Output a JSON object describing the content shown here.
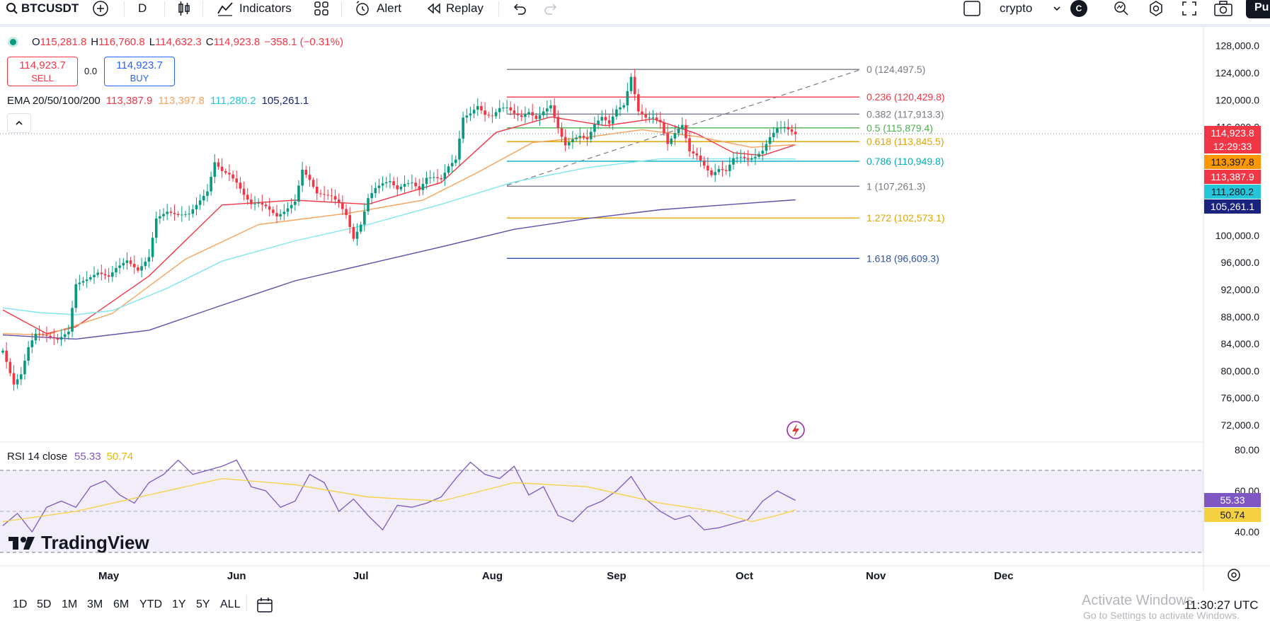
{
  "toolbar": {
    "symbol": "BTCUSDT",
    "interval": "D",
    "indicators_label": "Indicators",
    "alert_label": "Alert",
    "replay_label": "Replay",
    "layout_name": "crypto",
    "account_badge": "C",
    "publish_label": "Pu"
  },
  "legend": {
    "o_label": "O",
    "o_value": "115,281.8",
    "h_label": "H",
    "h_value": "116,760.8",
    "l_label": "L",
    "l_value": "114,632.3",
    "c_label": "C",
    "c_value": "114,923.8",
    "change": "−358.1 (−0.31%)",
    "sell_price": "114,923.7",
    "sell_label": "SELL",
    "spread": "0.0",
    "buy_price": "114,923.7",
    "buy_label": "BUY",
    "ema_label": "EMA 20/50/100/200",
    "ema20": "113,387.9",
    "ema50": "113,397.8",
    "ema100": "111,280.2",
    "ema200": "105,261.1"
  },
  "rsi_legend": {
    "label": "RSI 14 close",
    "rsi": "55.33",
    "ma": "50.74"
  },
  "bottom": {
    "ranges": [
      "1D",
      "5D",
      "1M",
      "3M",
      "6M",
      "YTD",
      "1Y",
      "5Y",
      "ALL"
    ],
    "clock": "11:30:27 UTC",
    "watermark_title": "Activate Windows",
    "watermark_sub": "Go to Settings to activate Windows."
  },
  "brand": "TradingView",
  "colors": {
    "up": "#089981",
    "down": "#f23645",
    "ema20": "#f23645",
    "ema50": "#f7a35c",
    "ema100": "#7ee6ee",
    "ema200": "#5d4ea8",
    "rsi": "#7e57c2",
    "rsi_ma": "#f5d142"
  },
  "chart_data": {
    "type": "candlestick",
    "symbol": "BTCUSDT",
    "interval": "1D",
    "y_price_range": [
      70000,
      130000
    ],
    "price_ticks": [
      "128,000.0",
      "124,000.0",
      "120,000.0",
      "116,000.0",
      "100,000.0",
      "96,000.0",
      "92,000.0",
      "88,000.0",
      "84,000.0",
      "80,000.0",
      "76,000.0",
      "72,000.0"
    ],
    "x_month_labels": [
      "May",
      "Jun",
      "Jul",
      "Aug",
      "Sep",
      "Oct",
      "Nov",
      "Dec"
    ],
    "last_price": {
      "value": "114,923.8",
      "countdown": "12:29:33"
    },
    "ema_tags": [
      "113,397.8",
      "113,387.9",
      "111,280.2",
      "105,261.1"
    ],
    "close_path": [
      [
        0,
        83000
      ],
      [
        3,
        78000
      ],
      [
        5,
        79500
      ],
      [
        7,
        83500
      ],
      [
        9,
        85500
      ],
      [
        12,
        85200
      ],
      [
        15,
        84600
      ],
      [
        18,
        85800
      ],
      [
        20,
        92800
      ],
      [
        23,
        93500
      ],
      [
        26,
        94500
      ],
      [
        29,
        93900
      ],
      [
        31,
        95200
      ],
      [
        34,
        96300
      ],
      [
        37,
        94800
      ],
      [
        40,
        96800
      ],
      [
        42,
        102500
      ],
      [
        45,
        103500
      ],
      [
        48,
        103000
      ],
      [
        51,
        103200
      ],
      [
        53,
        104500
      ],
      [
        56,
        106500
      ],
      [
        58,
        110800
      ],
      [
        60,
        109500
      ],
      [
        62,
        109000
      ],
      [
        64,
        107800
      ],
      [
        66,
        106000
      ],
      [
        68,
        104600
      ],
      [
        70,
        104800
      ],
      [
        72,
        104300
      ],
      [
        75,
        102800
      ],
      [
        77,
        103500
      ],
      [
        80,
        105000
      ],
      [
        82,
        109700
      ],
      [
        84,
        108200
      ],
      [
        86,
        106200
      ],
      [
        88,
        106000
      ],
      [
        90,
        105800
      ],
      [
        92,
        104800
      ],
      [
        94,
        103000
      ],
      [
        96,
        99500
      ],
      [
        98,
        101600
      ],
      [
        100,
        105500
      ],
      [
        102,
        107000
      ],
      [
        104,
        107700
      ],
      [
        106,
        108000
      ],
      [
        108,
        106800
      ],
      [
        110,
        107600
      ],
      [
        112,
        107800
      ],
      [
        114,
        106700
      ],
      [
        116,
        108500
      ],
      [
        118,
        108600
      ],
      [
        120,
        108300
      ],
      [
        122,
        110200
      ],
      [
        124,
        111200
      ],
      [
        126,
        117400
      ],
      [
        128,
        118000
      ],
      [
        130,
        119100
      ],
      [
        132,
        117800
      ],
      [
        134,
        117600
      ],
      [
        136,
        118800
      ],
      [
        138,
        118900
      ],
      [
        140,
        118000
      ],
      [
        142,
        117500
      ],
      [
        144,
        118200
      ],
      [
        146,
        117200
      ],
      [
        148,
        118300
      ],
      [
        150,
        119200
      ],
      [
        152,
        115800
      ],
      [
        154,
        113300
      ],
      [
        156,
        114200
      ],
      [
        158,
        114700
      ],
      [
        160,
        114200
      ],
      [
        162,
        116400
      ],
      [
        164,
        117500
      ],
      [
        166,
        116500
      ],
      [
        168,
        118600
      ],
      [
        170,
        119200
      ],
      [
        172,
        123400
      ],
      [
        174,
        118300
      ],
      [
        176,
        117400
      ],
      [
        178,
        117400
      ],
      [
        180,
        116700
      ],
      [
        182,
        113500
      ],
      [
        184,
        115100
      ],
      [
        186,
        116300
      ],
      [
        188,
        112400
      ],
      [
        190,
        111800
      ],
      [
        192,
        110300
      ],
      [
        194,
        108900
      ],
      [
        196,
        109800
      ],
      [
        198,
        109500
      ],
      [
        200,
        111400
      ],
      [
        202,
        111600
      ],
      [
        204,
        111200
      ],
      [
        206,
        111600
      ],
      [
        208,
        112500
      ],
      [
        210,
        114500
      ],
      [
        212,
        115800
      ],
      [
        214,
        116000
      ],
      [
        216,
        115300
      ],
      [
        217,
        114924
      ]
    ],
    "emas": [
      {
        "name": "EMA 20",
        "last": 113387.9,
        "points": [
          [
            0,
            89000
          ],
          [
            12,
            85500
          ],
          [
            20,
            86500
          ],
          [
            40,
            94000
          ],
          [
            60,
            104500
          ],
          [
            80,
            105200
          ],
          [
            100,
            104600
          ],
          [
            120,
            107800
          ],
          [
            135,
            115200
          ],
          [
            150,
            117500
          ],
          [
            165,
            116200
          ],
          [
            178,
            117200
          ],
          [
            190,
            115000
          ],
          [
            200,
            112200
          ],
          [
            208,
            111800
          ],
          [
            217,
            113388
          ]
        ]
      },
      {
        "name": "EMA 50",
        "last": 113397.8,
        "points": [
          [
            0,
            85500
          ],
          [
            12,
            85300
          ],
          [
            30,
            88500
          ],
          [
            50,
            96500
          ],
          [
            70,
            101600
          ],
          [
            95,
            103300
          ],
          [
            115,
            105200
          ],
          [
            130,
            109300
          ],
          [
            145,
            113700
          ],
          [
            160,
            114500
          ],
          [
            175,
            115600
          ],
          [
            190,
            114600
          ],
          [
            205,
            113000
          ],
          [
            217,
            113398
          ]
        ]
      },
      {
        "name": "EMA 100",
        "last": 111280.2,
        "points": [
          [
            0,
            89300
          ],
          [
            10,
            88600
          ],
          [
            20,
            88300
          ],
          [
            30,
            88900
          ],
          [
            45,
            92200
          ],
          [
            60,
            96200
          ],
          [
            80,
            99200
          ],
          [
            100,
            101600
          ],
          [
            120,
            104600
          ],
          [
            140,
            107900
          ],
          [
            160,
            110000
          ],
          [
            180,
            111300
          ],
          [
            200,
            111300
          ],
          [
            217,
            111280
          ]
        ]
      },
      {
        "name": "EMA 200",
        "last": 105261.1,
        "points": [
          [
            0,
            85300
          ],
          [
            20,
            84700
          ],
          [
            40,
            86000
          ],
          [
            60,
            89700
          ],
          [
            80,
            93300
          ],
          [
            100,
            95800
          ],
          [
            120,
            98300
          ],
          [
            140,
            100900
          ],
          [
            160,
            102500
          ],
          [
            180,
            103800
          ],
          [
            200,
            104600
          ],
          [
            217,
            105261
          ]
        ]
      }
    ],
    "fibonacci": [
      {
        "ratio": "0",
        "label": "0 (124,497.5)",
        "price": 124497.5,
        "color": "#787b86"
      },
      {
        "ratio": "0.236",
        "label": "0.236 (120,429.8)",
        "price": 120429.8,
        "color": "#f23645"
      },
      {
        "ratio": "0.382",
        "label": "0.382 (117,913.3)",
        "price": 117913.3,
        "color": "#787b86"
      },
      {
        "ratio": "0.5",
        "label": "0.5 (115,879.4)",
        "price": 115879.4,
        "color": "#4caf50"
      },
      {
        "ratio": "0.618",
        "label": "0.618 (113,845.5)",
        "price": 113845.5,
        "color": "#e2a400"
      },
      {
        "ratio": "0.786",
        "label": "0.786 (110,949.8)",
        "price": 110949.8,
        "color": "#00acc1"
      },
      {
        "ratio": "1",
        "label": "1 (107,261.3)",
        "price": 107261.3,
        "color": "#787b86"
      },
      {
        "ratio": "1.272",
        "label": "1.272 (102,573.1)",
        "price": 102573.1,
        "color": "#e2a400"
      },
      {
        "ratio": "1.618",
        "label": "1.618 (96,609.3)",
        "price": 96609.3,
        "color": "#2b53a8"
      }
    ],
    "rsi": {
      "period": 14,
      "range": [
        30,
        80
      ],
      "ticks": [
        "80.00",
        "60.00",
        "40.00"
      ],
      "upper_band": 70,
      "mid": 50,
      "lower_band": 30,
      "last": 55.33,
      "ma_last": 50.74,
      "values": [
        [
          0,
          43
        ],
        [
          4,
          49
        ],
        [
          8,
          40
        ],
        [
          12,
          52
        ],
        [
          16,
          55
        ],
        [
          20,
          52
        ],
        [
          24,
          62
        ],
        [
          28,
          65
        ],
        [
          32,
          58
        ],
        [
          36,
          54
        ],
        [
          40,
          64
        ],
        [
          44,
          68
        ],
        [
          48,
          75
        ],
        [
          52,
          68
        ],
        [
          56,
          70
        ],
        [
          60,
          72
        ],
        [
          64,
          75
        ],
        [
          68,
          62
        ],
        [
          72,
          60
        ],
        [
          76,
          52
        ],
        [
          80,
          55
        ],
        [
          84,
          68
        ],
        [
          88,
          64
        ],
        [
          92,
          50
        ],
        [
          96,
          56
        ],
        [
          100,
          48
        ],
        [
          104,
          41
        ],
        [
          108,
          53
        ],
        [
          112,
          52
        ],
        [
          116,
          54
        ],
        [
          120,
          57
        ],
        [
          124,
          66
        ],
        [
          128,
          74
        ],
        [
          132,
          68
        ],
        [
          136,
          66
        ],
        [
          140,
          72
        ],
        [
          144,
          58
        ],
        [
          148,
          62
        ],
        [
          152,
          48
        ],
        [
          156,
          45
        ],
        [
          160,
          52
        ],
        [
          164,
          55
        ],
        [
          168,
          60
        ],
        [
          172,
          67
        ],
        [
          176,
          56
        ],
        [
          180,
          50
        ],
        [
          184,
          46
        ],
        [
          188,
          48
        ],
        [
          192,
          41
        ],
        [
          196,
          42
        ],
        [
          200,
          44
        ],
        [
          204,
          46
        ],
        [
          208,
          55
        ],
        [
          212,
          60
        ],
        [
          217,
          55.33
        ]
      ],
      "ma_values": [
        [
          0,
          45
        ],
        [
          20,
          50
        ],
        [
          40,
          58
        ],
        [
          60,
          66
        ],
        [
          80,
          63
        ],
        [
          100,
          57
        ],
        [
          120,
          55
        ],
        [
          140,
          64
        ],
        [
          160,
          62
        ],
        [
          180,
          54
        ],
        [
          195,
          50
        ],
        [
          205,
          45
        ],
        [
          212,
          48
        ],
        [
          217,
          50.74
        ]
      ]
    }
  }
}
